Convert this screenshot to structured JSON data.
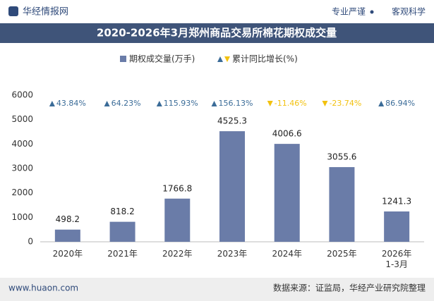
{
  "header": {
    "brand": "华经情报网",
    "slogan_left": "专业严谨",
    "slogan_right": "客观科学"
  },
  "footer": {
    "website": "www.huaon.com",
    "source": "数据来源：证监局，华经产业研究院整理"
  },
  "chart_data": {
    "type": "bar",
    "title": "2020-2026年3月郑州商品交易所棉花期权成交量",
    "categories": [
      "2020年",
      "2021年",
      "2022年",
      "2023年",
      "2024年",
      "2025年",
      "2026年\n1-3月"
    ],
    "series": [
      {
        "name": "期权成交量(万手)",
        "color": "#6a7ca8",
        "values": [
          498.2,
          818.2,
          1766.8,
          4525.3,
          4006.6,
          3055.6,
          1241.3
        ]
      },
      {
        "name": "累计同比增长(%)",
        "type": "marker-label",
        "up_color": "#3b6c98",
        "down_color": "#f2c10f",
        "values": [
          43.84,
          64.23,
          115.93,
          156.13,
          -11.46,
          -23.74,
          86.94
        ],
        "value_labels": [
          "43.84%",
          "64.23%",
          "115.93%",
          "156.13%",
          "-11.46%",
          "-23.74%",
          "86.94%"
        ]
      }
    ],
    "ylim": [
      0,
      6000
    ],
    "yticks": [
      0,
      1000,
      2000,
      3000,
      4000,
      5000,
      6000
    ]
  }
}
